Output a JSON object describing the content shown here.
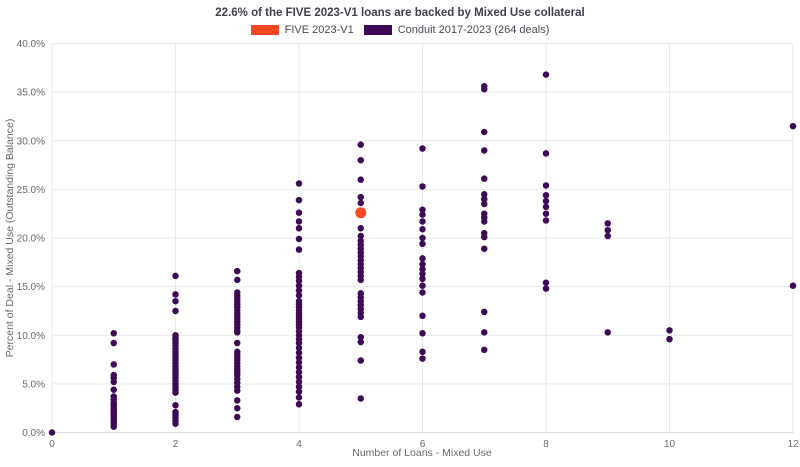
{
  "colors": {
    "background": "#ffffff",
    "grid": "#e9e9ec",
    "axis_line": "#d9d9dd",
    "tick_label": "#69696f",
    "axis_title": "#69696f",
    "title_text": "#41414b",
    "legend_text": "#4a4a52",
    "five_orange": "#fa4623",
    "conduit_purple": "#3e0a56"
  },
  "chart_data": {
    "type": "scatter",
    "title": "22.6% of the FIVE 2023-V1 loans are backed by Mixed Use collateral",
    "xlabel": "Number of Loans - Mixed Use",
    "ylabel": "Percent of Deal - Mixed Use (Outstanding Balance)",
    "xlim": [
      0,
      12
    ],
    "ylim": [
      0,
      40
    ],
    "x_ticks": [
      0,
      2,
      4,
      6,
      8,
      10,
      12
    ],
    "x_tick_labels": [
      "0",
      "2",
      "4",
      "6",
      "8",
      "10",
      "12"
    ],
    "y_ticks": [
      0,
      5,
      10,
      15,
      20,
      25,
      30,
      35,
      40
    ],
    "y_tick_labels": [
      "0.0%",
      "5.0%",
      "10.0%",
      "15.0%",
      "20.0%",
      "25.0%",
      "30.0%",
      "35.0%",
      "40.0%"
    ],
    "grid": true,
    "legend_position": "top-center",
    "series": [
      {
        "name": "FIVE 2023-V1",
        "color": "#fa4623",
        "marker_diameter_px": 11,
        "points": [
          [
            5,
            22.6
          ]
        ]
      },
      {
        "name": "Conduit 2017-2023 (264 deals)",
        "color": "#3e0a56",
        "marker_diameter_px": 6.5,
        "points": [
          [
            0,
            0.0
          ],
          [
            1,
            10.2
          ],
          [
            1,
            9.2
          ],
          [
            1,
            7.0
          ],
          [
            1,
            5.9
          ],
          [
            1,
            5.6
          ],
          [
            1,
            5.2
          ],
          [
            1,
            4.4
          ],
          [
            1,
            3.7
          ],
          [
            1,
            3.4
          ],
          [
            1,
            3.1
          ],
          [
            1,
            2.9
          ],
          [
            1,
            2.7
          ],
          [
            1,
            2.5
          ],
          [
            1,
            2.3
          ],
          [
            1,
            2.1
          ],
          [
            1,
            1.9
          ],
          [
            1,
            1.7
          ],
          [
            1,
            1.5
          ],
          [
            1,
            1.3
          ],
          [
            1,
            1.1
          ],
          [
            1,
            0.9
          ],
          [
            1,
            0.6
          ],
          [
            2,
            16.1
          ],
          [
            2,
            14.2
          ],
          [
            2,
            13.5
          ],
          [
            2,
            12.5
          ],
          [
            2,
            10.0
          ],
          [
            2,
            9.7
          ],
          [
            2,
            9.5
          ],
          [
            2,
            9.2
          ],
          [
            2,
            8.9
          ],
          [
            2,
            8.6
          ],
          [
            2,
            8.3
          ],
          [
            2,
            8.0
          ],
          [
            2,
            7.7
          ],
          [
            2,
            7.4
          ],
          [
            2,
            7.1
          ],
          [
            2,
            6.8
          ],
          [
            2,
            6.5
          ],
          [
            2,
            6.2
          ],
          [
            2,
            5.9
          ],
          [
            2,
            5.6
          ],
          [
            2,
            5.3
          ],
          [
            2,
            5.0
          ],
          [
            2,
            4.7
          ],
          [
            2,
            4.4
          ],
          [
            2,
            4.1
          ],
          [
            2,
            2.8
          ],
          [
            2,
            2.1
          ],
          [
            2,
            1.8
          ],
          [
            2,
            1.5
          ],
          [
            2,
            1.2
          ],
          [
            2,
            0.9
          ],
          [
            3,
            16.6
          ],
          [
            3,
            15.7
          ],
          [
            3,
            14.4
          ],
          [
            3,
            14.1
          ],
          [
            3,
            13.8
          ],
          [
            3,
            13.5
          ],
          [
            3,
            13.2
          ],
          [
            3,
            12.9
          ],
          [
            3,
            12.6
          ],
          [
            3,
            12.3
          ],
          [
            3,
            12.0
          ],
          [
            3,
            11.7
          ],
          [
            3,
            11.4
          ],
          [
            3,
            11.1
          ],
          [
            3,
            10.8
          ],
          [
            3,
            10.5
          ],
          [
            3,
            10.3
          ],
          [
            3,
            9.2
          ],
          [
            3,
            8.3
          ],
          [
            3,
            8.0
          ],
          [
            3,
            7.7
          ],
          [
            3,
            7.4
          ],
          [
            3,
            7.1
          ],
          [
            3,
            6.8
          ],
          [
            3,
            6.5
          ],
          [
            3,
            6.2
          ],
          [
            3,
            5.9
          ],
          [
            3,
            5.5
          ],
          [
            3,
            5.1
          ],
          [
            3,
            4.7
          ],
          [
            3,
            4.3
          ],
          [
            3,
            3.3
          ],
          [
            3,
            2.5
          ],
          [
            3,
            1.6
          ],
          [
            4,
            25.6
          ],
          [
            4,
            23.9
          ],
          [
            4,
            22.6
          ],
          [
            4,
            21.7
          ],
          [
            4,
            21.0
          ],
          [
            4,
            19.9
          ],
          [
            4,
            18.8
          ],
          [
            4,
            16.4
          ],
          [
            4,
            16.0
          ],
          [
            4,
            15.6
          ],
          [
            4,
            15.1
          ],
          [
            4,
            14.6
          ],
          [
            4,
            14.1
          ],
          [
            4,
            13.5
          ],
          [
            4,
            13.2
          ],
          [
            4,
            12.9
          ],
          [
            4,
            12.6
          ],
          [
            4,
            12.3
          ],
          [
            4,
            12.0
          ],
          [
            4,
            11.7
          ],
          [
            4,
            11.4
          ],
          [
            4,
            11.1
          ],
          [
            4,
            10.8
          ],
          [
            4,
            10.4
          ],
          [
            4,
            10.0
          ],
          [
            4,
            9.6
          ],
          [
            4,
            9.2
          ],
          [
            4,
            8.7
          ],
          [
            4,
            8.2
          ],
          [
            4,
            7.7
          ],
          [
            4,
            7.2
          ],
          [
            4,
            6.7
          ],
          [
            4,
            6.2
          ],
          [
            4,
            5.7
          ],
          [
            4,
            5.2
          ],
          [
            4,
            4.7
          ],
          [
            4,
            4.2
          ],
          [
            4,
            3.6
          ],
          [
            4,
            2.9
          ],
          [
            5,
            29.6
          ],
          [
            5,
            28.0
          ],
          [
            5,
            26.0
          ],
          [
            5,
            24.2
          ],
          [
            5,
            23.6
          ],
          [
            5,
            21.0
          ],
          [
            5,
            20.2
          ],
          [
            5,
            19.7
          ],
          [
            5,
            19.3
          ],
          [
            5,
            18.9
          ],
          [
            5,
            18.5
          ],
          [
            5,
            18.1
          ],
          [
            5,
            17.7
          ],
          [
            5,
            17.3
          ],
          [
            5,
            16.9
          ],
          [
            5,
            16.5
          ],
          [
            5,
            16.1
          ],
          [
            5,
            15.7
          ],
          [
            5,
            14.3
          ],
          [
            5,
            13.9
          ],
          [
            5,
            13.5
          ],
          [
            5,
            13.1
          ],
          [
            5,
            12.7
          ],
          [
            5,
            12.3
          ],
          [
            5,
            11.9
          ],
          [
            5,
            9.8
          ],
          [
            5,
            9.3
          ],
          [
            5,
            7.4
          ],
          [
            5,
            3.5
          ],
          [
            6,
            29.2
          ],
          [
            6,
            25.3
          ],
          [
            6,
            22.9
          ],
          [
            6,
            22.4
          ],
          [
            6,
            21.7
          ],
          [
            6,
            20.9
          ],
          [
            6,
            20.0
          ],
          [
            6,
            19.4
          ],
          [
            6,
            17.9
          ],
          [
            6,
            17.3
          ],
          [
            6,
            16.8
          ],
          [
            6,
            16.3
          ],
          [
            6,
            15.8
          ],
          [
            6,
            15.1
          ],
          [
            6,
            14.4
          ],
          [
            6,
            12.0
          ],
          [
            6,
            10.2
          ],
          [
            6,
            8.3
          ],
          [
            6,
            7.6
          ],
          [
            7,
            35.6
          ],
          [
            7,
            35.3
          ],
          [
            7,
            30.9
          ],
          [
            7,
            29.0
          ],
          [
            7,
            26.1
          ],
          [
            7,
            24.5
          ],
          [
            7,
            24.0
          ],
          [
            7,
            23.5
          ],
          [
            7,
            22.5
          ],
          [
            7,
            22.1
          ],
          [
            7,
            21.7
          ],
          [
            7,
            20.5
          ],
          [
            7,
            20.1
          ],
          [
            7,
            18.9
          ],
          [
            7,
            12.4
          ],
          [
            7,
            10.3
          ],
          [
            7,
            8.5
          ],
          [
            8,
            36.8
          ],
          [
            8,
            28.7
          ],
          [
            8,
            25.4
          ],
          [
            8,
            24.4
          ],
          [
            8,
            23.8
          ],
          [
            8,
            23.2
          ],
          [
            8,
            22.5
          ],
          [
            8,
            21.8
          ],
          [
            8,
            15.4
          ],
          [
            8,
            14.8
          ],
          [
            9,
            21.5
          ],
          [
            9,
            20.8
          ],
          [
            9,
            20.2
          ],
          [
            9,
            10.3
          ],
          [
            10,
            10.5
          ],
          [
            10,
            9.6
          ],
          [
            12,
            31.5
          ],
          [
            12,
            15.1
          ]
        ]
      }
    ]
  }
}
